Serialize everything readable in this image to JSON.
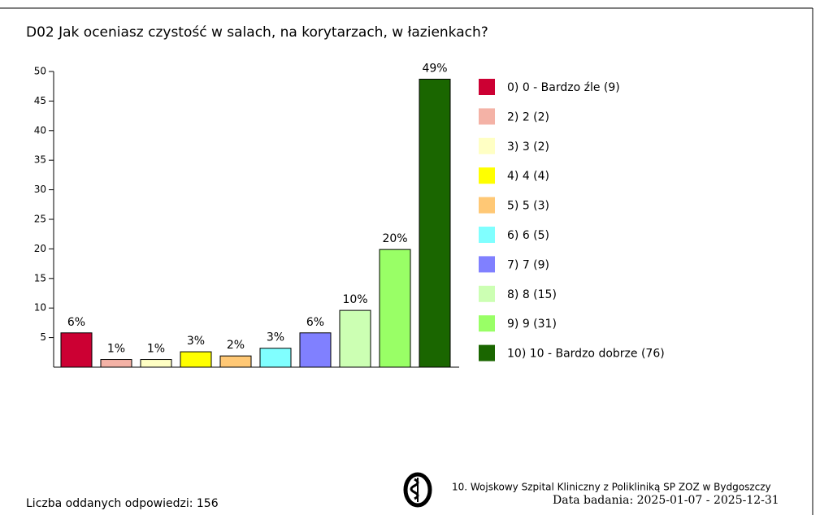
{
  "chart_data": {
    "type": "bar",
    "title": "D02 Jak oceniasz czystość w salach, na korytarzach, w łazienkach?",
    "categories": [
      "0) 0 - Bardzo źle (9)",
      "2) 2 (2)",
      "3) 3 (2)",
      "4) 4 (4)",
      "5) 5 (3)",
      "6) 6 (5)",
      "7) 7 (9)",
      "8) 8 (15)",
      "9) 9 (31)",
      "10) 10 - Bardzo dobrze (76)"
    ],
    "values": [
      5.8,
      1.3,
      1.3,
      2.6,
      1.9,
      3.2,
      5.8,
      9.6,
      19.9,
      48.7
    ],
    "value_labels": [
      "6%",
      "1%",
      "1%",
      "3%",
      "2%",
      "3%",
      "6%",
      "10%",
      "20%",
      "49%"
    ],
    "colors": [
      "#cc0033",
      "#f4b2a6",
      "#ffffc4",
      "#ffff00",
      "#ffc875",
      "#80ffff",
      "#8080ff",
      "#ccffb3",
      "#99ff66",
      "#1a6600"
    ],
    "ylim": [
      0,
      50
    ],
    "yticks": [
      5,
      10,
      15,
      20,
      25,
      30,
      35,
      40,
      45,
      50
    ],
    "footer_left": "Liczba oddanych odpowiedzi: 156",
    "footer_org": "10. Wojskowy Szpital Kliniczny z Polikliniką SP ZOZ w Bydgoszczy",
    "footer_date": "Data badania: 2025-01-07 - 2025-12-31"
  }
}
